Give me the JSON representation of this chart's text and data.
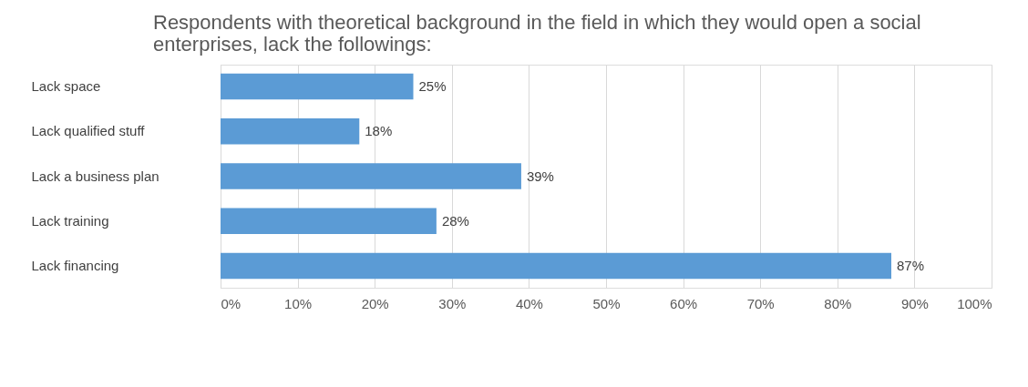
{
  "chart_data": {
    "type": "bar",
    "orientation": "horizontal",
    "title": "Respondents with theoretical background in the field in which they would open a social enterprises, lack the followings:",
    "categories": [
      "Lack space",
      "Lack qualified stuff",
      "Lack a business plan",
      "Lack training",
      "Lack financing"
    ],
    "values": [
      25,
      18,
      39,
      28,
      87
    ],
    "value_labels": [
      "25%",
      "18%",
      "39%",
      "28%",
      "87%"
    ],
    "color": "#5b9bd5",
    "xlim": [
      0,
      100
    ],
    "xticks": [
      {
        "value": 0,
        "label": "0%"
      },
      {
        "value": 10,
        "label": "10%"
      },
      {
        "value": 20,
        "label": "20%"
      },
      {
        "value": 30,
        "label": "30%"
      },
      {
        "value": 40,
        "label": "40%"
      },
      {
        "value": 50,
        "label": "50%"
      },
      {
        "value": 60,
        "label": "60%"
      },
      {
        "value": 70,
        "label": "70%"
      },
      {
        "value": 80,
        "label": "80%"
      },
      {
        "value": 90,
        "label": "90%"
      },
      {
        "value": 100,
        "label": "100%"
      }
    ],
    "grid": "x"
  }
}
